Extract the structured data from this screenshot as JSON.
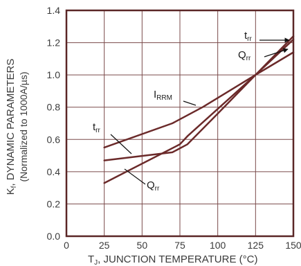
{
  "chart_data": {
    "type": "line",
    "title": "",
    "xlabel": {
      "main": "T",
      "sub": "J",
      "rest": ", JUNCTION TEMPERATURE (°C)"
    },
    "ylabel": {
      "line1_main": "K",
      "line1_sub": "f",
      "line1_rest": ", DYNAMIC PARAMETERS",
      "line2": "(Normalized  to 1000A/µs)"
    },
    "xlim": [
      0,
      150
    ],
    "ylim": [
      0.0,
      1.4
    ],
    "x_ticks": [
      0,
      25,
      50,
      75,
      100,
      125,
      150
    ],
    "x_tick_labels": [
      "0",
      "25",
      "50",
      "75",
      "100",
      "125",
      "150"
    ],
    "y_ticks": [
      0.0,
      0.2,
      0.4,
      0.6,
      0.8,
      1.0,
      1.2,
      1.4
    ],
    "y_tick_labels": [
      "0.0",
      "0.2",
      "0.4",
      "0.6",
      "0.8",
      "1.0",
      "1.2",
      "1.4"
    ],
    "grid": true,
    "colors": {
      "curve": "#6b2a2a",
      "frame": "#5a2626",
      "grid": "#7a4a4a"
    },
    "series": [
      {
        "name": "IRRM",
        "name_main": "I",
        "name_sub": "RRM",
        "x": [
          25,
          70,
          90,
          125,
          150
        ],
        "y": [
          0.55,
          0.7,
          0.8,
          1.0,
          1.14
        ]
      },
      {
        "name": "trr",
        "name_main": "t",
        "name_sub": "rr",
        "x": [
          25,
          70,
          80,
          100,
          125,
          150
        ],
        "y": [
          0.47,
          0.52,
          0.57,
          0.76,
          1.0,
          1.24
        ]
      },
      {
        "name": "Qrr",
        "name_main": "Q",
        "name_sub": "rr",
        "x": [
          25,
          75,
          80,
          125,
          150
        ],
        "y": [
          0.33,
          0.57,
          0.62,
          1.0,
          1.22
        ]
      }
    ]
  }
}
